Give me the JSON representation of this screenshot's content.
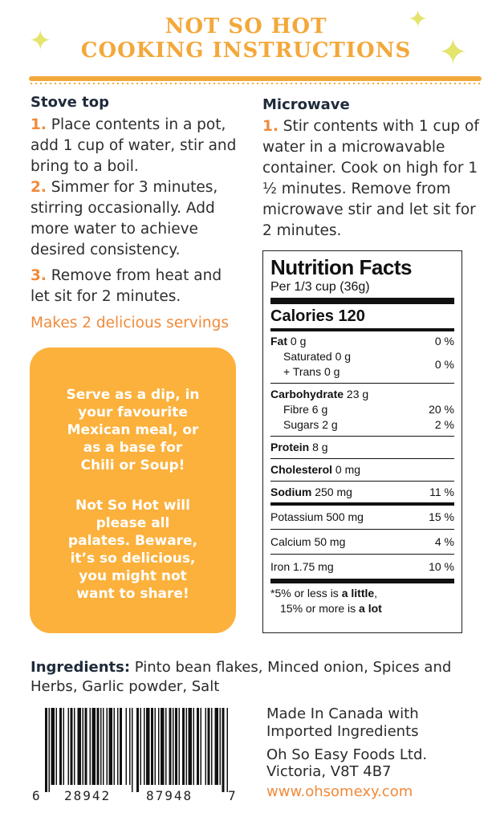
{
  "header": {
    "title_line1": "NOT SO HOT",
    "title_line2": "COOKING INSTRUCTIONS"
  },
  "stovetop": {
    "heading": "Stove top",
    "steps": [
      {
        "num": "1.",
        "text": " Place contents in a pot, add 1 cup of water, stir and bring to a boil."
      },
      {
        "num": "2.",
        "text": " Simmer for 3 minutes, stirring occasionally. Add more water to achieve desired consistency."
      },
      {
        "num": "3.",
        "text": " Remove from heat and let sit for 2 minutes."
      }
    ],
    "makes": "Makes 2 delicious servings"
  },
  "microwave": {
    "heading": "Microwave",
    "steps": [
      {
        "num": "1.",
        "text": " Stir contents with 1 cup of water in a microwavable container. Cook on high for 1 ½ minutes. Remove from microwave stir and let sit for 2 minutes."
      }
    ]
  },
  "serve_box": {
    "para1": "Serve as a dip, in your favourite Mexican meal, or as a base for Chili or Soup!",
    "para2": "Not So Hot will please all palates. Beware, it’s so delicious, you might not want to share!"
  },
  "nutrition": {
    "title": "Nutrition Facts",
    "serving": "Per 1/3 cup (36g)",
    "calories_label": "Calories",
    "calories_value": "120",
    "fat_label": "Fat",
    "fat_amount": " 0 g",
    "fat_dv": "0 %",
    "sat_label": "Saturated 0 g",
    "trans_label": "+ Trans 0 g",
    "satplus_dv": "0 %",
    "carb_label": "Carbohydrate",
    "carb_amount": " 23 g",
    "fibre_label": "Fibre 6 g",
    "fibre_dv": "20 %",
    "sugars_label": "Sugars 2 g",
    "sugars_dv": "2 %",
    "protein_label": "Protein",
    "protein_amount": " 8 g",
    "chol_label": "Cholesterol",
    "chol_amount": " 0 mg",
    "sodium_label": "Sodium",
    "sodium_amount": " 250 mg",
    "sodium_dv": "11 %",
    "potassium_label": "Potassium 500 mg",
    "potassium_dv": "15 %",
    "calcium_label": "Calcium 50 mg",
    "calcium_dv": "4 %",
    "iron_label": "Iron 1.75 mg",
    "iron_dv": "10 %",
    "foot_line1_pre": "*5% or less is ",
    "foot_line1_bold": "a little",
    "foot_line1_post": ",",
    "foot_line2_pre": "15% or more is ",
    "foot_line2_bold": "a lot"
  },
  "ingredients": {
    "label": "Ingredients:",
    "text": " Pinto bean flakes, Minced onion, Spices and Herbs, Garlic powder, Salt"
  },
  "barcode": {
    "digit_first": "6",
    "group_left": "28942",
    "group_right": "87948",
    "digit_last": "7"
  },
  "footer": {
    "made_line1": "Made In Canada with",
    "made_line2": "Imported Ingredients",
    "company_line1": "Oh So Easy Foods Ltd.",
    "company_line2": "Victoria, V8T 4B7",
    "url": "www.ohsomexy.com"
  },
  "colors": {
    "accent_orange": "#f3a83b",
    "box_orange": "#fbb13c",
    "star_yellow": "#e4e46e",
    "number_orange": "#f08a3a"
  }
}
